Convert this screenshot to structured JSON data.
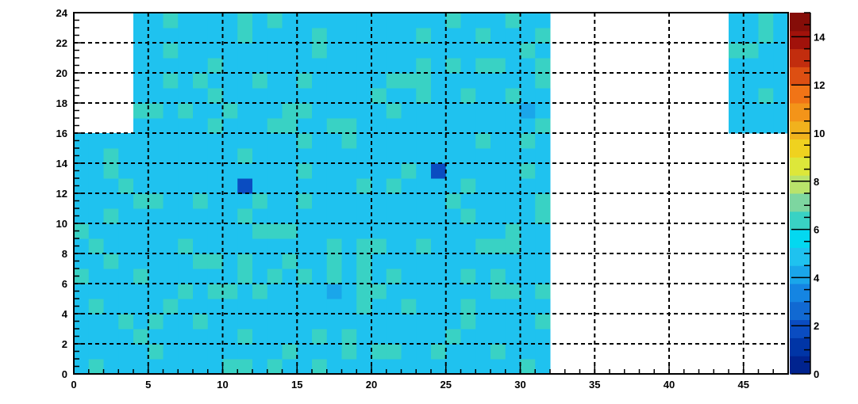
{
  "chart_data": {
    "type": "heatmap",
    "title": "",
    "xlabel": "",
    "ylabel": "",
    "xlim": [
      0,
      48
    ],
    "ylim": [
      0,
      24
    ],
    "x_ticks": [
      "0",
      "5",
      "10",
      "15",
      "20",
      "25",
      "30",
      "35",
      "40",
      "45"
    ],
    "y_ticks": [
      "0",
      "2",
      "4",
      "6",
      "8",
      "10",
      "12",
      "14",
      "16",
      "18",
      "20",
      "22",
      "24"
    ],
    "z_ticks": [
      "0",
      "2",
      "4",
      "6",
      "8",
      "10",
      "12",
      "14"
    ],
    "zlim": [
      0,
      15
    ],
    "grid": true,
    "colorbar": "right",
    "palette": [
      "#00238f",
      "#0035a6",
      "#0a4cc1",
      "#1169d2",
      "#1585e2",
      "#1aa6ea",
      "#1fc2ef",
      "#03d8f0",
      "#39d2c4",
      "#7dd6a0",
      "#b9e36b",
      "#dde73a",
      "#efd21f",
      "#f1b21d",
      "#f39419",
      "#f17416",
      "#dd4f12",
      "#c22d0e",
      "#a1120b",
      "#850d08"
    ],
    "filled_regions": [
      {
        "x": [
          0,
          32
        ],
        "y": [
          0,
          16
        ],
        "typical_value": 5
      },
      {
        "x": [
          4,
          32
        ],
        "y": [
          16,
          24
        ],
        "typical_value": 5
      },
      {
        "x": [
          44,
          48
        ],
        "y": [
          16,
          24
        ],
        "typical_value": 5
      }
    ],
    "notable_cells": [
      {
        "x": 11,
        "y": 12,
        "value": 2
      },
      {
        "x": 24,
        "y": 13,
        "value": 2
      },
      {
        "x": 30,
        "y": 17,
        "value": 4
      },
      {
        "x": 17,
        "y": 5,
        "value": 4
      }
    ]
  }
}
